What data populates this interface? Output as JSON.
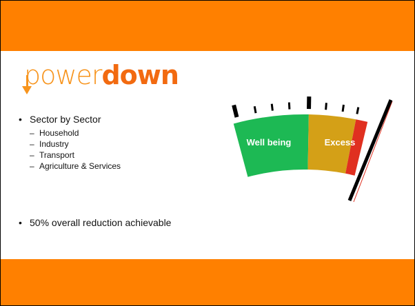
{
  "logo": {
    "light": "power",
    "bold": "down"
  },
  "bullets": [
    {
      "text": "Sector by Sector",
      "subitems": [
        "Household",
        "Industry",
        "Transport",
        "Agriculture & Services"
      ]
    },
    {
      "text": "50% overall reduction achievable"
    }
  ],
  "gauge": {
    "labels": [
      "Well being",
      "Excess"
    ]
  }
}
